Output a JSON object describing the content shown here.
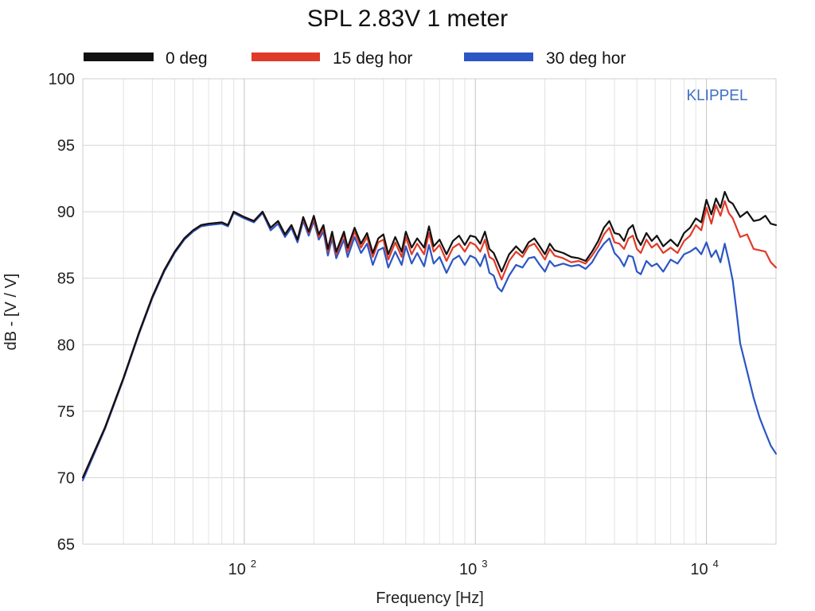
{
  "chart_data": {
    "type": "line",
    "title": "SPL 2.83V 1 meter",
    "xlabel": "Frequency [Hz]",
    "ylabel": "dB - [V / V]",
    "xscale": "log",
    "xlim": [
      20,
      20000
    ],
    "ylim": [
      65,
      100
    ],
    "yticks": [
      65,
      70,
      75,
      80,
      85,
      90,
      95,
      100
    ],
    "xticks": [
      {
        "base": "10",
        "exp": "2",
        "value": 100
      },
      {
        "base": "10",
        "exp": "3",
        "value": 1000
      },
      {
        "base": "10",
        "exp": "4",
        "value": 10000
      }
    ],
    "grid": true,
    "legend_position": "top",
    "annotation": "KLIPPEL",
    "series": [
      {
        "name": "0 deg",
        "color": "#111111",
        "x": [
          20,
          25,
          30,
          35,
          40,
          45,
          50,
          55,
          60,
          65,
          70,
          80,
          85,
          90,
          100,
          110,
          120,
          130,
          140,
          150,
          160,
          170,
          180,
          190,
          200,
          210,
          220,
          230,
          240,
          250,
          270,
          280,
          300,
          320,
          340,
          360,
          380,
          400,
          420,
          450,
          480,
          500,
          530,
          560,
          600,
          630,
          660,
          700,
          750,
          800,
          850,
          900,
          950,
          1000,
          1050,
          1100,
          1150,
          1200,
          1250,
          1300,
          1400,
          1500,
          1600,
          1700,
          1800,
          1900,
          2000,
          2100,
          2200,
          2400,
          2600,
          2800,
          3000,
          3200,
          3400,
          3600,
          3800,
          4000,
          4200,
          4400,
          4600,
          4800,
          5000,
          5200,
          5500,
          5800,
          6100,
          6500,
          7000,
          7500,
          8000,
          8500,
          9000,
          9500,
          10000,
          10500,
          11000,
          11500,
          12000,
          12500,
          13000,
          13500,
          14000,
          15000,
          16000,
          17000,
          18000,
          19000,
          20000
        ],
        "y": [
          70.0,
          73.8,
          77.5,
          80.9,
          83.6,
          85.6,
          87.0,
          88.0,
          88.6,
          89.0,
          89.1,
          89.2,
          89.0,
          90.0,
          89.6,
          89.3,
          90.0,
          88.8,
          89.3,
          88.3,
          89.0,
          87.9,
          89.6,
          88.5,
          89.7,
          88.3,
          89.0,
          87.2,
          88.5,
          87.0,
          88.5,
          87.3,
          88.8,
          87.6,
          88.4,
          86.9,
          88.0,
          88.3,
          86.8,
          88.1,
          87.0,
          88.5,
          87.3,
          88.0,
          87.3,
          88.9,
          87.4,
          87.9,
          86.8,
          87.8,
          88.2,
          87.5,
          88.2,
          88.1,
          87.6,
          88.5,
          87.2,
          86.9,
          86.2,
          85.5,
          86.8,
          87.4,
          86.9,
          87.7,
          88.0,
          87.4,
          86.8,
          87.6,
          87.1,
          86.9,
          86.6,
          86.5,
          86.3,
          87.0,
          87.8,
          88.8,
          89.3,
          88.4,
          88.3,
          87.8,
          88.7,
          89.0,
          88.0,
          87.5,
          88.4,
          87.8,
          88.2,
          87.4,
          87.9,
          87.4,
          88.4,
          88.8,
          89.5,
          89.2,
          90.9,
          89.8,
          91.0,
          90.3,
          91.5,
          90.8,
          90.6,
          90.1,
          89.6,
          90.0,
          89.3,
          89.4,
          89.7,
          89.1,
          89.0
        ]
      },
      {
        "name": "15 deg hor",
        "color": "#e03a28",
        "x": [
          20,
          25,
          30,
          35,
          40,
          45,
          50,
          55,
          60,
          65,
          70,
          80,
          85,
          90,
          100,
          110,
          120,
          130,
          140,
          150,
          160,
          170,
          180,
          190,
          200,
          210,
          220,
          230,
          240,
          250,
          270,
          280,
          300,
          320,
          340,
          360,
          380,
          400,
          420,
          450,
          480,
          500,
          530,
          560,
          600,
          630,
          660,
          700,
          750,
          800,
          850,
          900,
          950,
          1000,
          1050,
          1100,
          1150,
          1200,
          1250,
          1300,
          1400,
          1500,
          1600,
          1700,
          1800,
          1900,
          2000,
          2100,
          2200,
          2400,
          2600,
          2800,
          3000,
          3200,
          3400,
          3600,
          3800,
          4000,
          4200,
          4400,
          4600,
          4800,
          5000,
          5200,
          5500,
          5800,
          6100,
          6500,
          7000,
          7500,
          8000,
          8500,
          9000,
          9500,
          10000,
          10500,
          11000,
          11500,
          12000,
          12500,
          13000,
          13500,
          14000,
          15000,
          16000,
          17000,
          18000,
          19000,
          20000
        ],
        "y": [
          70.0,
          73.8,
          77.5,
          80.9,
          83.6,
          85.6,
          87.0,
          88.0,
          88.6,
          89.0,
          89.1,
          89.2,
          89.0,
          90.0,
          89.6,
          89.3,
          90.0,
          88.8,
          89.3,
          88.3,
          89.0,
          87.9,
          89.5,
          88.4,
          89.5,
          88.1,
          88.8,
          87.0,
          88.3,
          86.8,
          88.3,
          87.0,
          88.5,
          87.3,
          88.1,
          86.6,
          87.7,
          87.9,
          86.4,
          87.7,
          86.6,
          88.1,
          86.8,
          87.6,
          86.8,
          88.4,
          87.0,
          87.5,
          86.3,
          87.3,
          87.6,
          87.0,
          87.7,
          87.5,
          87.0,
          87.9,
          86.6,
          86.4,
          85.6,
          84.9,
          86.3,
          87.0,
          86.6,
          87.4,
          87.6,
          87.0,
          86.4,
          87.2,
          86.7,
          86.5,
          86.2,
          86.3,
          86.1,
          86.7,
          87.4,
          88.3,
          88.8,
          87.7,
          87.6,
          87.2,
          88.0,
          88.2,
          87.2,
          86.9,
          87.9,
          87.3,
          87.6,
          86.9,
          87.3,
          86.9,
          87.8,
          88.2,
          89.0,
          88.6,
          90.3,
          89.1,
          90.5,
          89.7,
          90.8,
          89.9,
          89.5,
          88.8,
          88.1,
          88.3,
          87.2,
          87.1,
          87.0,
          86.2,
          85.8
        ]
      },
      {
        "name": "30 deg hor",
        "color": "#2c56c4",
        "x": [
          20,
          25,
          30,
          35,
          40,
          45,
          50,
          55,
          60,
          65,
          70,
          80,
          85,
          90,
          100,
          110,
          120,
          130,
          140,
          150,
          160,
          170,
          180,
          190,
          200,
          210,
          220,
          230,
          240,
          250,
          270,
          280,
          300,
          320,
          340,
          360,
          380,
          400,
          420,
          450,
          480,
          500,
          530,
          560,
          600,
          630,
          660,
          700,
          750,
          800,
          850,
          900,
          950,
          1000,
          1050,
          1100,
          1150,
          1200,
          1250,
          1300,
          1400,
          1500,
          1600,
          1700,
          1800,
          1900,
          2000,
          2100,
          2200,
          2400,
          2600,
          2800,
          3000,
          3200,
          3400,
          3600,
          3800,
          4000,
          4200,
          4400,
          4600,
          4800,
          5000,
          5200,
          5500,
          5800,
          6100,
          6500,
          7000,
          7500,
          8000,
          8500,
          9000,
          9500,
          10000,
          10500,
          11000,
          11500,
          12000,
          12500,
          13000,
          13500,
          14000,
          15000,
          16000,
          17000,
          18000,
          19000,
          20000
        ],
        "y": [
          69.8,
          73.7,
          77.4,
          80.8,
          83.5,
          85.5,
          86.9,
          87.9,
          88.5,
          88.9,
          89.0,
          89.1,
          88.9,
          89.9,
          89.5,
          89.2,
          89.9,
          88.6,
          89.1,
          88.1,
          88.8,
          87.7,
          89.3,
          88.2,
          89.3,
          87.9,
          88.5,
          86.7,
          88.0,
          86.5,
          87.9,
          86.6,
          88.1,
          86.9,
          87.6,
          86.0,
          87.1,
          87.3,
          85.8,
          87.0,
          86.0,
          87.4,
          86.1,
          86.9,
          85.9,
          87.5,
          86.1,
          86.6,
          85.4,
          86.4,
          86.7,
          86.0,
          86.7,
          86.5,
          85.9,
          86.8,
          85.4,
          85.2,
          84.3,
          84.0,
          85.2,
          86.0,
          85.8,
          86.5,
          86.6,
          86.0,
          85.5,
          86.3,
          85.9,
          86.1,
          85.9,
          86.0,
          85.7,
          86.2,
          87.0,
          87.6,
          88.0,
          86.9,
          86.5,
          85.9,
          86.7,
          86.6,
          85.5,
          85.3,
          86.3,
          85.9,
          86.1,
          85.5,
          86.4,
          86.1,
          86.8,
          87.0,
          87.3,
          86.8,
          87.7,
          86.6,
          87.1,
          86.2,
          87.6,
          86.3,
          84.8,
          82.5,
          80.1,
          78.0,
          76.0,
          74.5,
          73.4,
          72.4,
          71.8
        ]
      }
    ]
  }
}
